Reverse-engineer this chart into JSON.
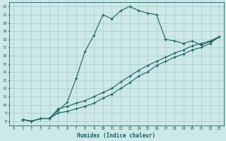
{
  "xlabel": "Humidex (Indice chaleur)",
  "xlim": [
    -0.5,
    23.5
  ],
  "ylim": [
    7.5,
    22.5
  ],
  "xticks": [
    0,
    1,
    2,
    3,
    4,
    5,
    6,
    7,
    8,
    9,
    10,
    11,
    12,
    13,
    14,
    15,
    16,
    17,
    18,
    19,
    20,
    21,
    22,
    23
  ],
  "yticks": [
    8,
    9,
    10,
    11,
    12,
    13,
    14,
    15,
    16,
    17,
    18,
    19,
    20,
    21,
    22
  ],
  "bg_color": "#cce8e8",
  "grid_color": "#a8cccc",
  "line_color": "#1a6060",
  "curve1_x": [
    1,
    2,
    3,
    4,
    5,
    6,
    7,
    8,
    9,
    10,
    11,
    12,
    13,
    14,
    15,
    16,
    17,
    18,
    19,
    20,
    21,
    22,
    23
  ],
  "curve1_y": [
    8.2,
    8.0,
    8.3,
    8.3,
    9.3,
    10.3,
    13.2,
    16.5,
    18.5,
    21.0,
    20.5,
    21.5,
    22.0,
    21.5,
    21.2,
    21.0,
    18.0,
    17.8,
    17.5,
    17.8,
    17.3,
    17.7,
    18.3
  ],
  "curve2_x": [
    1,
    2,
    3,
    4,
    5,
    6,
    7,
    8,
    9,
    10,
    11,
    12,
    13,
    14,
    15,
    16,
    17,
    18,
    19,
    20,
    21,
    22,
    23
  ],
  "curve2_y": [
    8.2,
    8.0,
    8.3,
    8.3,
    9.5,
    9.8,
    10.2,
    10.5,
    11.0,
    11.5,
    12.0,
    12.8,
    13.5,
    14.2,
    14.8,
    15.3,
    15.8,
    16.3,
    16.7,
    17.2,
    17.5,
    17.8,
    18.3
  ],
  "curve3_x": [
    1,
    2,
    3,
    4,
    5,
    6,
    7,
    8,
    9,
    10,
    11,
    12,
    13,
    14,
    15,
    16,
    17,
    18,
    19,
    20,
    21,
    22,
    23
  ],
  "curve3_y": [
    8.2,
    8.0,
    8.3,
    8.3,
    9.0,
    9.2,
    9.5,
    9.8,
    10.2,
    10.8,
    11.3,
    12.0,
    12.7,
    13.5,
    14.0,
    14.8,
    15.3,
    15.8,
    16.2,
    16.7,
    17.0,
    17.5,
    18.3
  ]
}
